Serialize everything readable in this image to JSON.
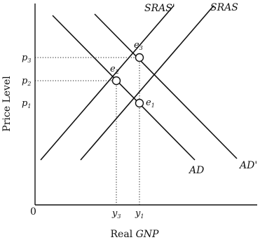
{
  "axes": {
    "y_title": "Price Level",
    "x_title_prefix": "Real ",
    "x_title_var": "GNP",
    "origin": "0"
  },
  "curves": {
    "srass_label": "SRAS'",
    "sras_label": "SRAS",
    "ad_label": "AD",
    "adp_label": "AD'"
  },
  "points": [
    {
      "letter": "e",
      "sub": "1"
    },
    {
      "letter": "e",
      "sub": "2"
    },
    {
      "letter": "e",
      "sub": "3"
    }
  ],
  "price_ticks": [
    {
      "letter": "p",
      "sub": "3"
    },
    {
      "letter": "p",
      "sub": "2"
    },
    {
      "letter": "p",
      "sub": "1"
    }
  ],
  "output_ticks": [
    {
      "letter": "y",
      "sub": "3"
    },
    {
      "letter": "y",
      "sub": "1"
    }
  ]
}
